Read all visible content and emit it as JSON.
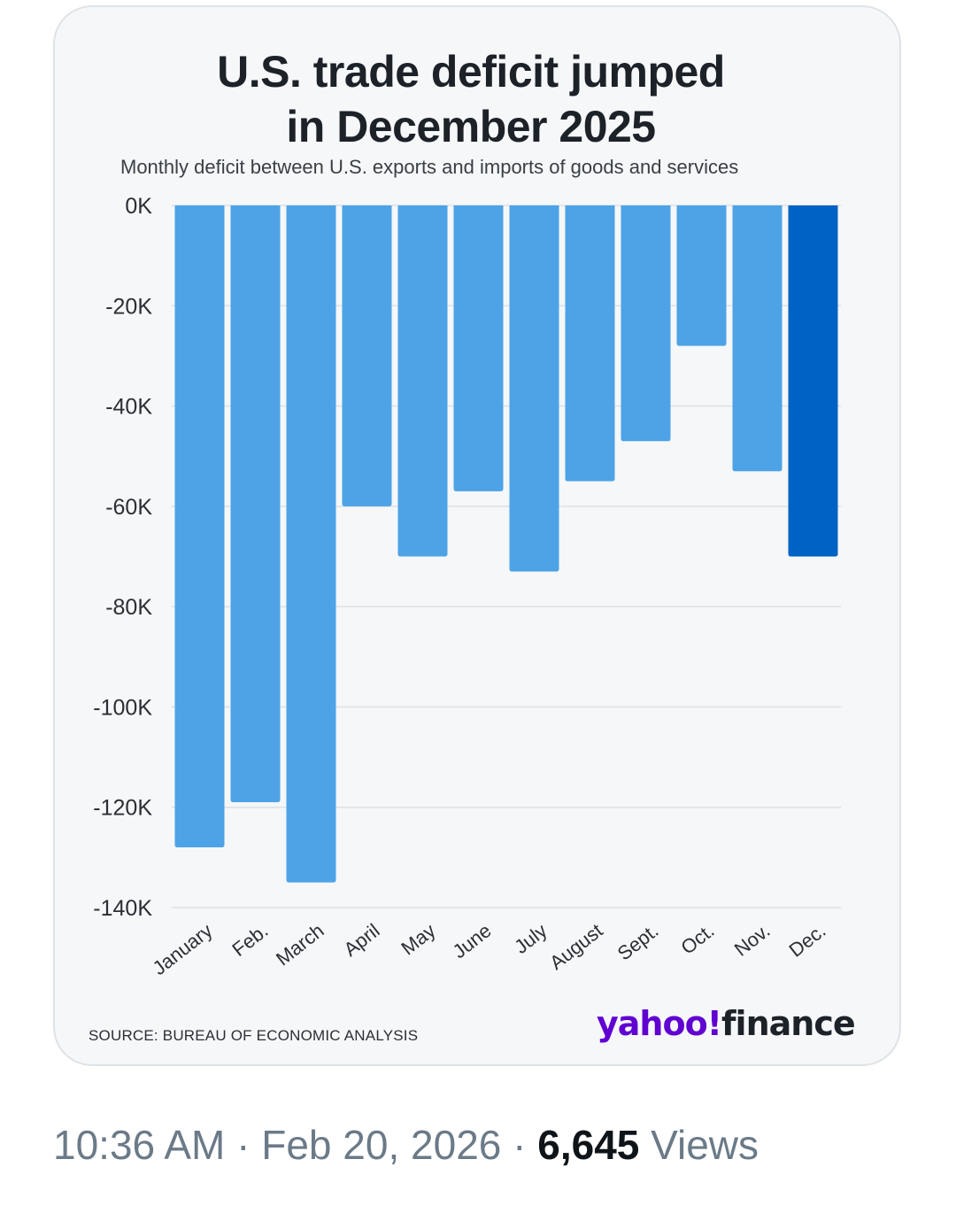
{
  "chart_data": {
    "type": "bar",
    "title_lines": [
      "U.S. trade deficit jumped",
      "in December 2025"
    ],
    "subtitle": "Monthly deficit between U.S. exports and imports of goods and services",
    "categories": [
      "January",
      "Feb.",
      "March",
      "April",
      "May",
      "June",
      "July",
      "August",
      "Sept.",
      "Oct.",
      "Nov.",
      "Dec."
    ],
    "values": [
      -128,
      -119,
      -135,
      -60,
      -70,
      -57,
      -73,
      -55,
      -47,
      -28,
      -53,
      -70
    ],
    "highlight_index": 11,
    "ylim": [
      -140,
      0
    ],
    "yticks": [
      0,
      -20,
      -40,
      -60,
      -80,
      -100,
      -120,
      -140
    ],
    "ytick_labels": [
      "0K",
      "-20K",
      "-40K",
      "-60K",
      "-80K",
      "-100K",
      "-120K",
      "-140K"
    ],
    "xlabel": "",
    "ylabel": "",
    "grid": true,
    "colors": {
      "bar": "#4da3e6",
      "highlight": "#0062c4",
      "grid": "#dde1e5"
    }
  },
  "source": "SOURCE: BUREAU OF ECONOMIC ANALYSIS",
  "logo": {
    "brand": "yahoo!",
    "product": "finance"
  },
  "tweet_meta": {
    "time": "10:36 AM",
    "sep1": " · ",
    "date": "Feb 20, 2026",
    "sep2": " · ",
    "views_count": "6,645",
    "views_label": " Views"
  }
}
